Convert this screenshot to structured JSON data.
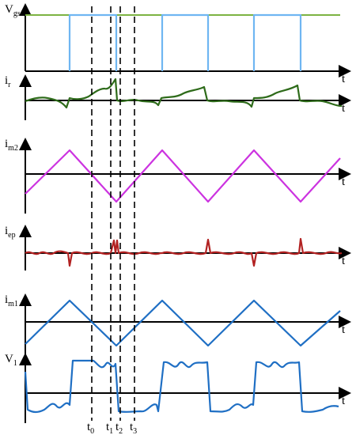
{
  "signals": [
    {
      "symbol": "V",
      "subscript": "gs"
    },
    {
      "symbol": "i",
      "subscript": "r"
    },
    {
      "symbol": "i",
      "subscript": "m2"
    },
    {
      "symbol": "i",
      "subscript": "ep"
    },
    {
      "symbol": "i",
      "subscript": "m1"
    },
    {
      "symbol": "V",
      "subscript": "1"
    }
  ],
  "time_axis": "t",
  "time_markers": [
    {
      "symbol": "t",
      "subscript": "0"
    },
    {
      "symbol": "t",
      "subscript": "1"
    },
    {
      "symbol": "t",
      "subscript": "2"
    },
    {
      "symbol": "t",
      "subscript": "3"
    }
  ]
}
